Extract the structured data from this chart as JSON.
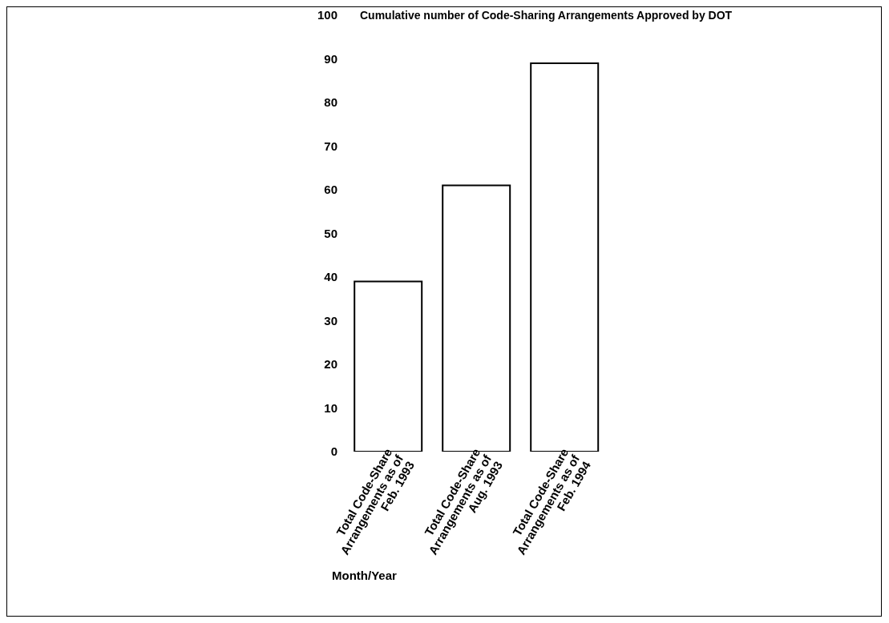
{
  "chart_data": {
    "type": "bar",
    "title": "Cumulative number of Code-Sharing Arrangements Approved by DOT",
    "xlabel": "Month/Year",
    "categories": [
      "Total Code-Share Arrangements as of Feb. 1993",
      "Total Code-Share Arrangements as of Aug. 1993",
      "Total Code-Share Arrangements as of Feb. 1994"
    ],
    "values": [
      39,
      61,
      89
    ],
    "color": "#ffffff",
    "ylim": [
      0,
      100
    ],
    "yticks": [
      0,
      10,
      20,
      30,
      40,
      50,
      60,
      70,
      80,
      90,
      100
    ],
    "grid": false,
    "legend": false
  }
}
